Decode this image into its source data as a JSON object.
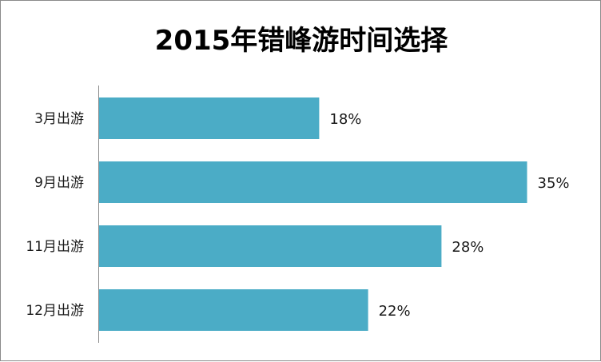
{
  "chart_data": {
    "type": "bar",
    "orientation": "horizontal",
    "title": "2015年错峰游时间选择",
    "categories": [
      "3月出游",
      "9月出游",
      "11月出游",
      "12月出游"
    ],
    "values": [
      18,
      35,
      28,
      22
    ],
    "value_labels": [
      "18%",
      "35%",
      "28%",
      "22%"
    ],
    "unit": "%",
    "xlim": [
      0,
      40
    ],
    "grid": false,
    "legend": "none",
    "bar_color": "#4bacc6"
  }
}
